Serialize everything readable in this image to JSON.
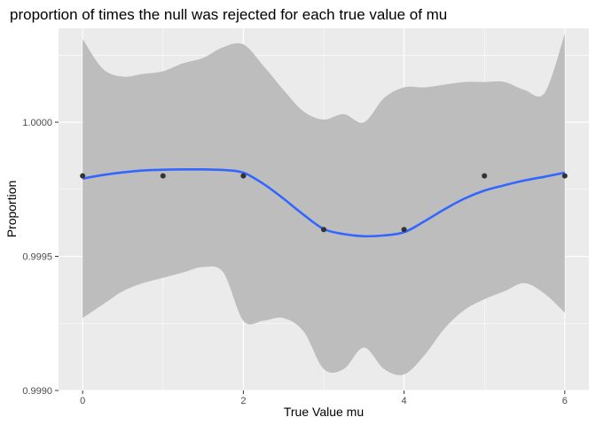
{
  "chart_data": {
    "type": "scatter",
    "title": "proportion of times the null was rejected for each true value of mu",
    "xlabel": "True Value mu",
    "ylabel": "Proportion",
    "xlim": [
      -0.3,
      6.3
    ],
    "ylim": [
      0.999,
      1.00035
    ],
    "x_ticks": [
      0,
      2,
      4,
      6
    ],
    "x_tick_labels": [
      "0",
      "2",
      "4",
      "6"
    ],
    "y_ticks": [
      0.999,
      0.9995,
      1.0
    ],
    "y_tick_labels": [
      "0.9990",
      "0.9995",
      "1.0000"
    ],
    "grid": true,
    "points": [
      {
        "x": 0,
        "y": 0.9998
      },
      {
        "x": 1,
        "y": 0.9998
      },
      {
        "x": 2,
        "y": 0.9998
      },
      {
        "x": 3,
        "y": 0.9996
      },
      {
        "x": 4,
        "y": 0.9996
      },
      {
        "x": 5,
        "y": 0.9998
      },
      {
        "x": 6,
        "y": 0.9998
      }
    ],
    "smooth": {
      "method": "loess",
      "x": [
        0,
        0.25,
        0.5,
        0.75,
        1,
        1.25,
        1.5,
        1.75,
        2,
        2.25,
        2.5,
        2.75,
        3,
        3.25,
        3.5,
        3.75,
        4,
        4.25,
        4.5,
        4.75,
        5,
        5.25,
        5.5,
        5.75,
        6
      ],
      "y": [
        0.99979,
        0.999803,
        0.999813,
        0.99982,
        0.999823,
        0.999824,
        0.999824,
        0.999822,
        0.999812,
        0.99977,
        0.999715,
        0.999655,
        0.999602,
        0.999583,
        0.999575,
        0.999578,
        0.99959,
        0.99963,
        0.999675,
        0.999715,
        0.999745,
        0.999765,
        0.999783,
        0.999797,
        0.999812
      ],
      "ymin": [
        0.99927,
        0.99932,
        0.99937,
        0.9994,
        0.99942,
        0.99944,
        0.99946,
        0.99944,
        0.99926,
        0.99926,
        0.99927,
        0.99922,
        0.99908,
        0.99908,
        0.99916,
        0.99908,
        0.99906,
        0.99913,
        0.99923,
        0.9993,
        0.99934,
        0.99937,
        0.9994,
        0.99936,
        0.99929
      ],
      "ymax": [
        1.00031,
        1.0002,
        1.00017,
        1.00018,
        1.00019,
        1.00022,
        1.00024,
        1.00028,
        1.00029,
        1.00021,
        1.00012,
        1.00004,
        1.00001,
        1.00003,
        1.0,
        1.00009,
        1.00013,
        1.00013,
        1.00014,
        1.00015,
        1.00015,
        1.00015,
        1.00012,
        1.00011,
        1.00033
      ]
    },
    "colors": {
      "panel_background": "#ebebeb",
      "grid": "#ffffff",
      "ribbon": "#bdbdbd",
      "line": "#3366ff",
      "point": "#333333"
    }
  }
}
